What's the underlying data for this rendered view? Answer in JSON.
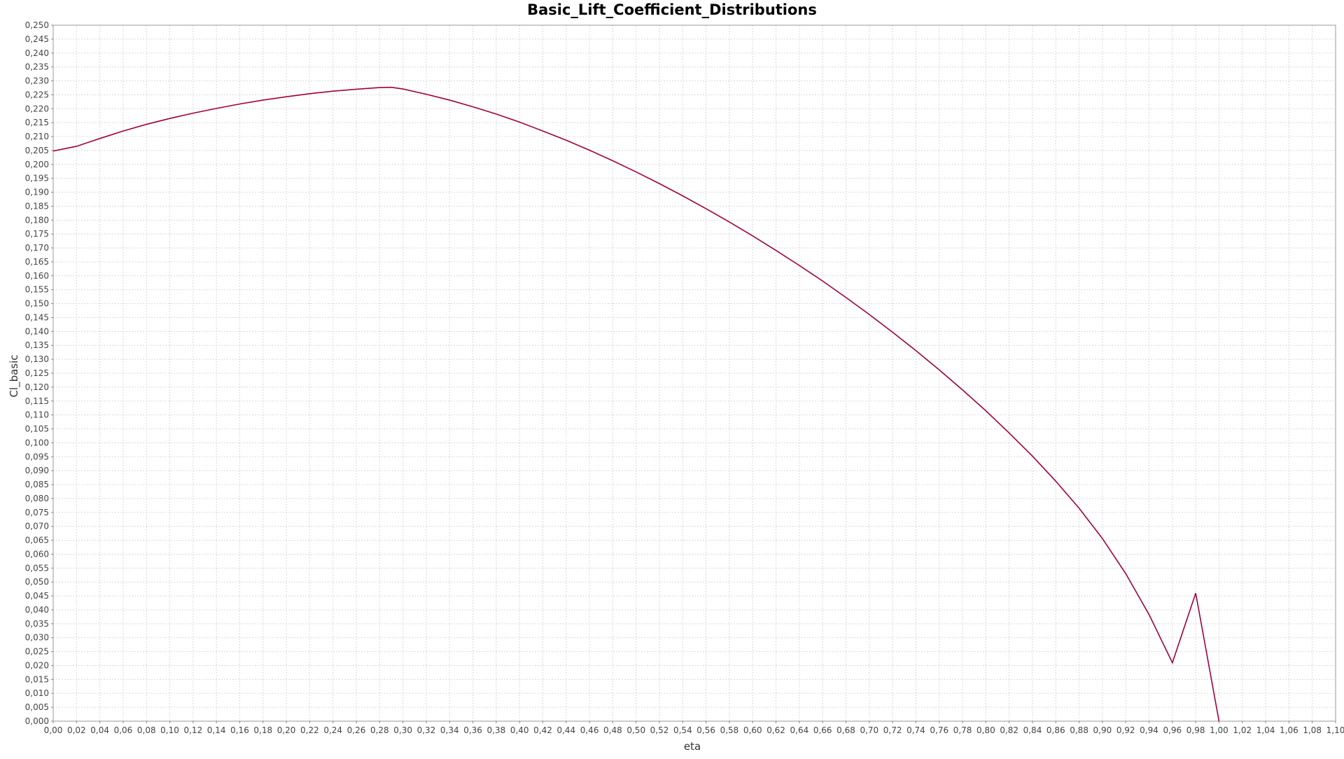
{
  "chart_data": {
    "type": "line",
    "title": "Basic_Lift_Coefficient_Distributions",
    "xlabel": "eta",
    "ylabel": "Cl_basic",
    "xlim": [
      0.0,
      1.1
    ],
    "ylim": [
      0.0,
      0.25
    ],
    "x_tick_step": 0.02,
    "y_tick_step": 0.005,
    "decimal_separator": ",",
    "x_tick_decimals": 2,
    "y_tick_decimals": 3,
    "grid": true,
    "legend": "none",
    "line_color": "#a0003c",
    "grid_color": "#d8d8d8",
    "series": [
      {
        "x": [
          0.0,
          0.02,
          0.04,
          0.06,
          0.08,
          0.1,
          0.12,
          0.14,
          0.16,
          0.18,
          0.2,
          0.22,
          0.24,
          0.26,
          0.28,
          0.29,
          0.3,
          0.32,
          0.34,
          0.36,
          0.38,
          0.4,
          0.42,
          0.44,
          0.46,
          0.48,
          0.5,
          0.52,
          0.54,
          0.56,
          0.58,
          0.6,
          0.62,
          0.64,
          0.66,
          0.68,
          0.7,
          0.72,
          0.74,
          0.76,
          0.78,
          0.8,
          0.82,
          0.84,
          0.86,
          0.88,
          0.9,
          0.92,
          0.94,
          0.96,
          0.98,
          1.0
        ],
        "y": [
          0.2048,
          0.2065,
          0.2093,
          0.212,
          0.2144,
          0.2165,
          0.2184,
          0.2201,
          0.2217,
          0.2231,
          0.2243,
          0.2254,
          0.2263,
          0.227,
          0.2276,
          0.2277,
          0.2271,
          0.2252,
          0.2231,
          0.2207,
          0.2181,
          0.2152,
          0.212,
          0.2087,
          0.2051,
          0.2013,
          0.1973,
          0.1931,
          0.1887,
          0.1841,
          0.1793,
          0.1743,
          0.1691,
          0.1637,
          0.1581,
          0.1522,
          0.1461,
          0.1397,
          0.1331,
          0.1262,
          0.119,
          0.1115,
          0.1035,
          0.0952,
          0.0862,
          0.0765,
          0.0656,
          0.053,
          0.0383,
          0.021,
          0.046,
          0.0
        ]
      }
    ]
  }
}
